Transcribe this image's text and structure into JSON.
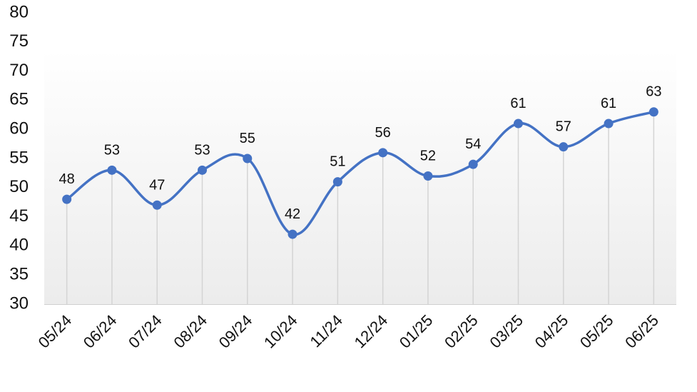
{
  "chart_data": {
    "type": "line",
    "categories": [
      "05/24",
      "06/24",
      "07/24",
      "08/24",
      "09/24",
      "10/24",
      "11/24",
      "12/24",
      "01/25",
      "02/25",
      "03/25",
      "04/25",
      "05/25",
      "06/25"
    ],
    "values": [
      48,
      53,
      47,
      53,
      55,
      42,
      51,
      56,
      52,
      54,
      61,
      57,
      61,
      63
    ],
    "color": "#4472c4",
    "ylim": [
      30,
      80
    ],
    "yticks": [
      30,
      35,
      40,
      45,
      50,
      55,
      60,
      65,
      70,
      75,
      80
    ]
  }
}
